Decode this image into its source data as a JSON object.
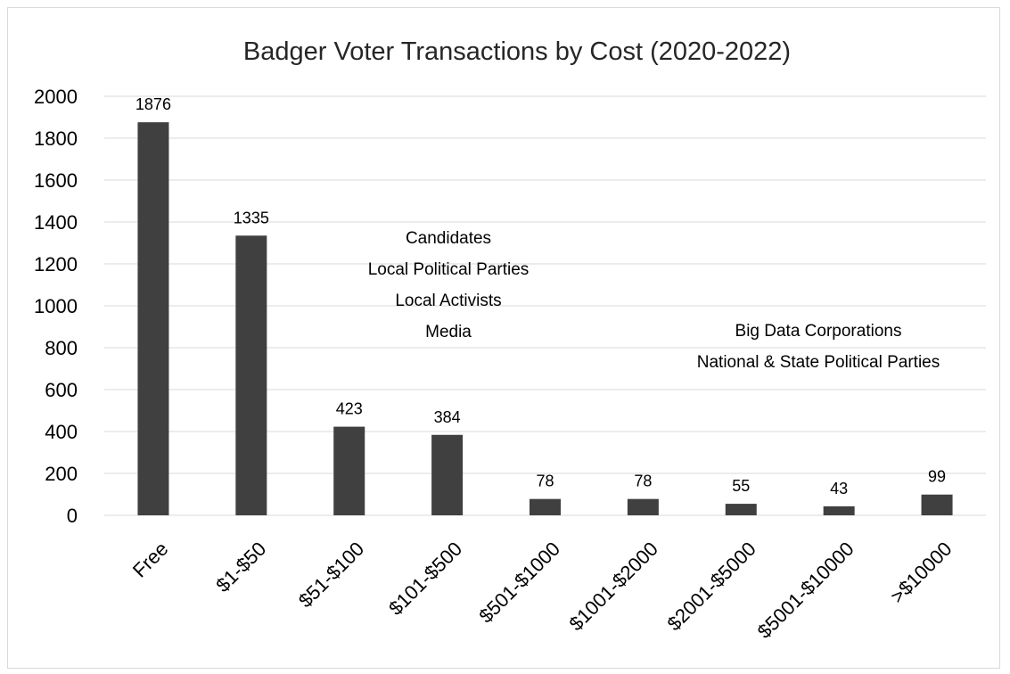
{
  "chart_data": {
    "type": "bar",
    "title": "Badger Voter Transactions by Cost (2020-2022)",
    "xlabel": "",
    "ylabel": "",
    "categories": [
      "Free",
      "$1-$50",
      "$51-$100",
      "$101-$500",
      "$501-$1000",
      "$1001-$2000",
      "$2001-$5000",
      "$5001-$10000",
      ">$10000"
    ],
    "values": [
      1876,
      1335,
      423,
      384,
      78,
      78,
      55,
      43,
      99
    ],
    "data_labels": [
      "1876",
      "1335",
      "423",
      "384",
      "78",
      "78",
      "55",
      "43",
      "99"
    ],
    "ylim": [
      0,
      2000
    ],
    "yticks": [
      "0",
      "200",
      "400",
      "600",
      "800",
      "1000",
      "1200",
      "1400",
      "1600",
      "1800",
      "2000"
    ],
    "grid": true,
    "bar_color": "#404040",
    "annotations": [
      {
        "lines": [
          "Candidates",
          "Local Political Parties",
          "Local Activists",
          "Media"
        ]
      },
      {
        "lines": [
          "Big Data Corporations",
          "National & State Political Parties"
        ]
      }
    ]
  }
}
